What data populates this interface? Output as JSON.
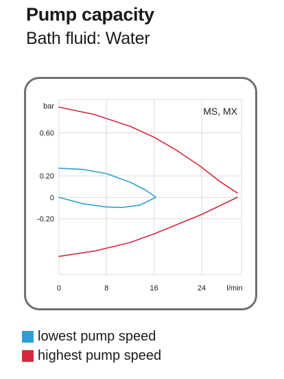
{
  "title": "Pump capacity",
  "subtitle": "Bath fluid: Water",
  "colors": {
    "lowest": "#2f9fd4",
    "highest": "#d6283a"
  },
  "legend": [
    {
      "label": "lowest pump speed",
      "color": "#2f9fd4"
    },
    {
      "label": "highest pump speed",
      "color": "#d6283a"
    }
  ],
  "chart_data": {
    "type": "line",
    "annotation": "MS, MX",
    "ylabel": "bar",
    "xlabel": "l/min",
    "xlim": [
      0,
      30.7
    ],
    "ylim": [
      -0.72,
      0.91
    ],
    "x_ticks": [
      {
        "value": 0,
        "label": "0"
      },
      {
        "value": 8,
        "label": "8"
      },
      {
        "value": 16,
        "label": "16"
      },
      {
        "value": 24,
        "label": "24"
      }
    ],
    "y_ticks": [
      {
        "value": 0.6,
        "label": "0.60"
      },
      {
        "value": 0.2,
        "label": "0.20"
      },
      {
        "value": 0,
        "label": "0"
      },
      {
        "value": -0.2,
        "label": "-0.20"
      }
    ],
    "grid": {
      "x": true,
      "y": true
    },
    "series": [
      {
        "color": "#2f9fd4",
        "points": [
          [
            0,
            0.27
          ],
          [
            4,
            0.26
          ],
          [
            8,
            0.22
          ],
          [
            12,
            0.14
          ],
          [
            14.5,
            0.07
          ],
          [
            16.3,
            0
          ]
        ]
      },
      {
        "color": "#2f9fd4",
        "points": [
          [
            0,
            0
          ],
          [
            4,
            -0.06
          ],
          [
            8,
            -0.09
          ],
          [
            10.5,
            -0.095
          ],
          [
            13.5,
            -0.075
          ],
          [
            16.3,
            0
          ]
        ]
      },
      {
        "color": "#d6283a",
        "points": [
          [
            0,
            0.84
          ],
          [
            6,
            0.77
          ],
          [
            12,
            0.66
          ],
          [
            16,
            0.56
          ],
          [
            20,
            0.43
          ],
          [
            24,
            0.28
          ],
          [
            27,
            0.15
          ],
          [
            30,
            0.04
          ]
        ]
      },
      {
        "color": "#d6283a",
        "points": [
          [
            0,
            -0.55
          ],
          [
            6,
            -0.5
          ],
          [
            12,
            -0.42
          ],
          [
            16,
            -0.34
          ],
          [
            20,
            -0.25
          ],
          [
            24,
            -0.16
          ],
          [
            27,
            -0.08
          ],
          [
            30,
            0
          ]
        ]
      }
    ]
  }
}
